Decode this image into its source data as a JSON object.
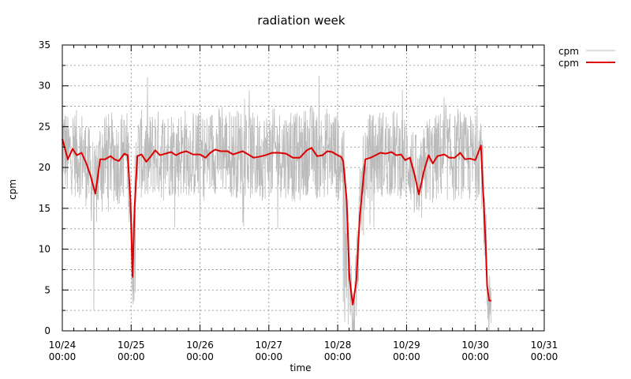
{
  "chart_data": {
    "type": "line",
    "title": "radiation week",
    "xlabel": "time",
    "ylabel": "cpm",
    "ylim": [
      0,
      35
    ],
    "yticks": [
      "0",
      "5",
      "10",
      "15",
      "20",
      "25",
      "30",
      "35"
    ],
    "xlim_days": [
      0,
      7
    ],
    "xticks": [
      {
        "line1": "10/24",
        "line2": "00:00"
      },
      {
        "line1": "10/25",
        "line2": "00:00"
      },
      {
        "line1": "10/26",
        "line2": "00:00"
      },
      {
        "line1": "10/27",
        "line2": "00:00"
      },
      {
        "line1": "10/28",
        "line2": "00:00"
      },
      {
        "line1": "10/29",
        "line2": "00:00"
      },
      {
        "line1": "10/30",
        "line2": "00:00"
      },
      {
        "line1": "10/31",
        "line2": "00:00"
      }
    ],
    "grid": true,
    "legend_position": "top-right outside",
    "series": [
      {
        "name": "cpm",
        "style": "raw",
        "color": "#bbbbbb",
        "description_range": {
          "typical_min": 15,
          "typical_max": 30
        },
        "gaps": [
          [
            0.43,
            0.46
          ],
          [
            1.0,
            1.06
          ],
          [
            4.08,
            4.22
          ],
          [
            6.22,
            6.3
          ]
        ]
      },
      {
        "name": "cpm",
        "style": "smoothed",
        "color": "#dd0000",
        "x": [
          0.0,
          0.08,
          0.15,
          0.21,
          0.28,
          0.35,
          0.41,
          0.48,
          0.55,
          0.62,
          0.7,
          0.76,
          0.82,
          0.9,
          0.95,
          0.99,
          1.02,
          1.05,
          1.09,
          1.15,
          1.22,
          1.28,
          1.35,
          1.42,
          1.5,
          1.58,
          1.65,
          1.72,
          1.8,
          1.9,
          2.0,
          2.08,
          2.15,
          2.22,
          2.3,
          2.4,
          2.48,
          2.55,
          2.62,
          2.7,
          2.78,
          2.85,
          2.95,
          3.05,
          3.15,
          3.25,
          3.35,
          3.45,
          3.55,
          3.62,
          3.7,
          3.78,
          3.85,
          3.92,
          4.0,
          4.05,
          4.08,
          4.13,
          4.17,
          4.22,
          4.27,
          4.32,
          4.4,
          4.48,
          4.55,
          4.62,
          4.7,
          4.78,
          4.85,
          4.92,
          4.98,
          5.05,
          5.12,
          5.18,
          5.25,
          5.32,
          5.38,
          5.45,
          5.55,
          5.62,
          5.7,
          5.78,
          5.85,
          5.92,
          6.0,
          6.08,
          6.15,
          6.17,
          6.2,
          6.23
        ],
        "y": [
          23.5,
          21.0,
          22.3,
          21.5,
          21.8,
          20.5,
          19.0,
          16.8,
          21.0,
          21.0,
          21.4,
          21.0,
          20.8,
          21.7,
          21.5,
          16.0,
          6.6,
          15.0,
          21.4,
          21.6,
          20.7,
          21.3,
          22.1,
          21.5,
          21.7,
          21.9,
          21.5,
          21.8,
          22.0,
          21.6,
          21.6,
          21.2,
          21.8,
          22.2,
          22.0,
          22.0,
          21.6,
          21.8,
          22.0,
          21.6,
          21.2,
          21.3,
          21.5,
          21.8,
          21.8,
          21.7,
          21.2,
          21.2,
          22.1,
          22.4,
          21.4,
          21.5,
          22.0,
          21.9,
          21.5,
          21.3,
          20.8,
          16.0,
          6.5,
          3.2,
          6.0,
          14.0,
          21.0,
          21.2,
          21.5,
          21.8,
          21.7,
          21.9,
          21.5,
          21.6,
          20.9,
          21.2,
          19.0,
          16.7,
          19.5,
          21.5,
          20.5,
          21.4,
          21.6,
          21.2,
          21.2,
          21.8,
          21.0,
          21.1,
          20.9,
          22.7,
          10.5,
          5.5,
          3.7,
          3.7
        ]
      }
    ]
  }
}
